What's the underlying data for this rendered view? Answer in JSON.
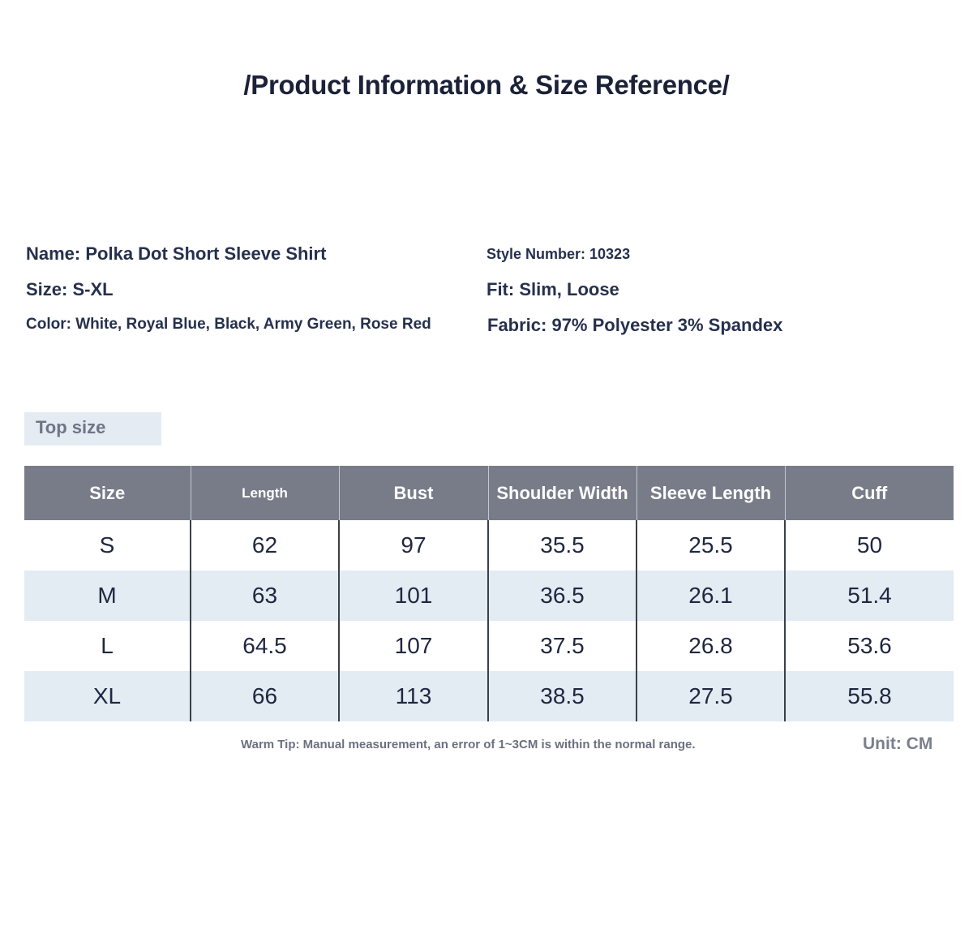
{
  "title": "/Product Information & Size Reference/",
  "info": {
    "name": "Name: Polka Dot Short Sleeve Shirt",
    "size": "Size: S-XL",
    "color": "Color: White, Royal Blue, Black, Army Green, Rose Red",
    "style_number": "Style Number: 10323",
    "fit": "Fit: Slim, Loose",
    "fabric": "Fabric: 97% Polyester 3% Spandex"
  },
  "section_label": "Top size",
  "table": {
    "headers": [
      "Size",
      "Length",
      "Bust",
      "Shoulder Width",
      "Sleeve Length",
      "Cuff"
    ],
    "rows": [
      [
        "S",
        "62",
        "97",
        "35.5",
        "25.5",
        "50"
      ],
      [
        "M",
        "63",
        "101",
        "36.5",
        "26.1",
        "51.4"
      ],
      [
        "L",
        "64.5",
        "107",
        "37.5",
        "26.8",
        "53.6"
      ],
      [
        "XL",
        "66",
        "113",
        "38.5",
        "27.5",
        "55.8"
      ]
    ]
  },
  "tip": "Warm Tip: Manual measurement, an error of 1~3CM is within the normal range.",
  "unit": "Unit: CM",
  "colors": {
    "header_bg": "#787c89",
    "alt_row_bg": "#e3ebf3",
    "text": "#1f2a44"
  }
}
